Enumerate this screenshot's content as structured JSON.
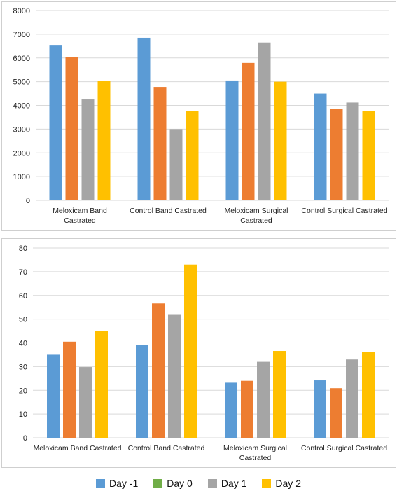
{
  "legend": [
    {
      "label": "Day -1",
      "color": "#5b9bd5"
    },
    {
      "label": "Day 0",
      "color": "#70ad47"
    },
    {
      "label": "Day 1",
      "color": "#a5a5a5"
    },
    {
      "label": "Day 2",
      "color": "#ffc000"
    }
  ],
  "chart_data": [
    {
      "type": "bar",
      "title": "",
      "xlabel": "",
      "ylabel": "",
      "ylim": [
        0,
        8000
      ],
      "yticks": [
        0,
        1000,
        2000,
        3000,
        4000,
        5000,
        6000,
        7000,
        8000
      ],
      "grid": true,
      "categories": [
        "Meloxicam Band Castrated",
        "Control Band Castrated",
        "Meloxicam Surgical Castrated",
        "Control Surgical Castrated"
      ],
      "category_labels": [
        [
          "Meloxicam  Band",
          "Castrated"
        ],
        [
          "Control  Band Castrated"
        ],
        [
          "Meloxicam     Surgical",
          "Castrated"
        ],
        [
          "Control  Surgical Castrated"
        ]
      ],
      "series": [
        {
          "name": "Day -1",
          "color": "#5b9bd5",
          "values": [
            6550,
            6850,
            5050,
            4500
          ]
        },
        {
          "name": "Day 0",
          "color": "#ed7d31",
          "values": [
            6050,
            4780,
            5790,
            3850
          ]
        },
        {
          "name": "Day 1",
          "color": "#a5a5a5",
          "values": [
            4250,
            3000,
            6650,
            4120
          ]
        },
        {
          "name": "Day 2",
          "color": "#ffc000",
          "values": [
            5030,
            3760,
            5000,
            3750
          ]
        }
      ]
    },
    {
      "type": "bar",
      "title": "",
      "xlabel": "",
      "ylabel": "",
      "ylim": [
        0,
        80
      ],
      "yticks": [
        0,
        10,
        20,
        30,
        40,
        50,
        60,
        70,
        80
      ],
      "grid": true,
      "categories": [
        "Meloxicam Band Castrated",
        "Control Band Castrated",
        "Meloxicam Surgical Castrated",
        "Control Surgical Castrated"
      ],
      "category_labels": [
        [
          "Meloxicam     Band Castrated"
        ],
        [
          "Control   Band Castrated"
        ],
        [
          "Meloxicam     Surgical",
          "Castrated"
        ],
        [
          "Control  Surgical Castrated"
        ]
      ],
      "series": [
        {
          "name": "Day -1",
          "color": "#5b9bd5",
          "values": [
            35,
            39,
            23.2,
            24.2
          ]
        },
        {
          "name": "Day 0",
          "color": "#ed7d31",
          "values": [
            40.5,
            56.6,
            24,
            20.9
          ]
        },
        {
          "name": "Day 1",
          "color": "#a5a5a5",
          "values": [
            29.8,
            51.8,
            32,
            33
          ]
        },
        {
          "name": "Day 2",
          "color": "#ffc000",
          "values": [
            45,
            73,
            36.6,
            36.3
          ]
        }
      ]
    }
  ]
}
